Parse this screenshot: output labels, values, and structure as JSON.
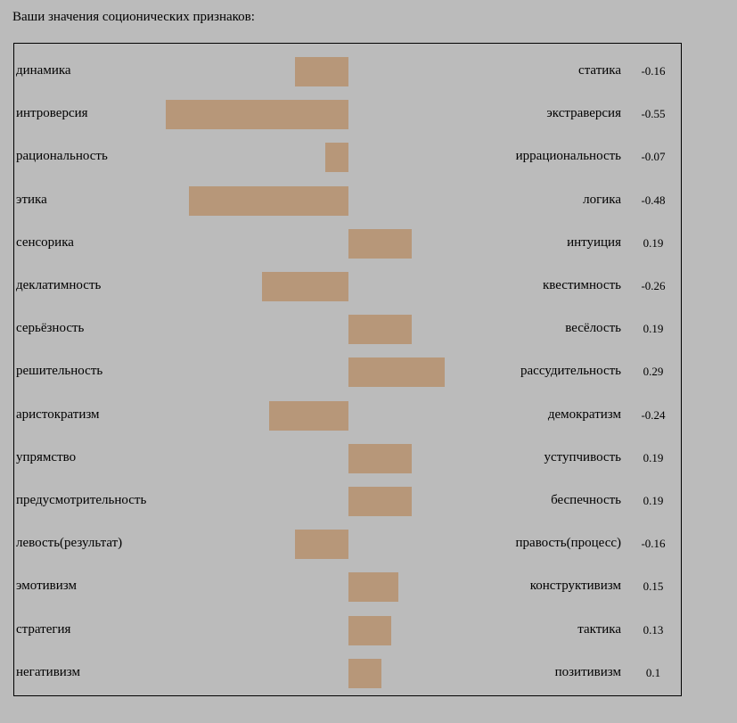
{
  "heading": "Ваши значения соционических признаков:",
  "colors": {
    "background": "#bbbbbb",
    "bar": "#b79779",
    "border": "#000000"
  },
  "chart_data": {
    "type": "bar",
    "orientation": "horizontal",
    "diverging": true,
    "title": "Ваши значения соционических признаков:",
    "grid": false,
    "legend": "none",
    "xlim": [
      -0.55,
      0.55
    ],
    "rows": [
      {
        "left": "динамика",
        "right": "статика",
        "label": "-0.16",
        "value": -0.16
      },
      {
        "left": "интроверсия",
        "right": "экстраверсия",
        "label": "-0.55",
        "value": -0.55
      },
      {
        "left": "рациональность",
        "right": "иррациональность",
        "label": "-0.07",
        "value": -0.07
      },
      {
        "left": "этика",
        "right": "логика",
        "label": "-0.48",
        "value": -0.48
      },
      {
        "left": "сенсорика",
        "right": "интуиция",
        "label": "0.19",
        "value": 0.19
      },
      {
        "left": "деклатимность",
        "right": "квестимность",
        "label": "-0.26",
        "value": -0.26
      },
      {
        "left": "серьёзность",
        "right": "весёлость",
        "label": "0.19",
        "value": 0.19
      },
      {
        "left": "решительность",
        "right": "рассудительность",
        "label": "0.29",
        "value": 0.29
      },
      {
        "left": "аристократизм",
        "right": "демократизм",
        "label": "-0.24",
        "value": -0.24
      },
      {
        "left": "упрямство",
        "right": "уступчивость",
        "label": "0.19",
        "value": 0.19
      },
      {
        "left": "предусмотрительность",
        "right": "беспечность",
        "label": "0.19",
        "value": 0.19
      },
      {
        "left": "левость(результат)",
        "right": "правость(процесс)",
        "label": "-0.16",
        "value": -0.16
      },
      {
        "left": "эмотивизм",
        "right": "конструктивизм",
        "label": "0.15",
        "value": 0.15
      },
      {
        "left": "стратегия",
        "right": "тактика",
        "label": "0.13",
        "value": 0.13
      },
      {
        "left": "негативизм",
        "right": "позитивизм",
        "label": "0.1",
        "value": 0.1
      }
    ]
  }
}
